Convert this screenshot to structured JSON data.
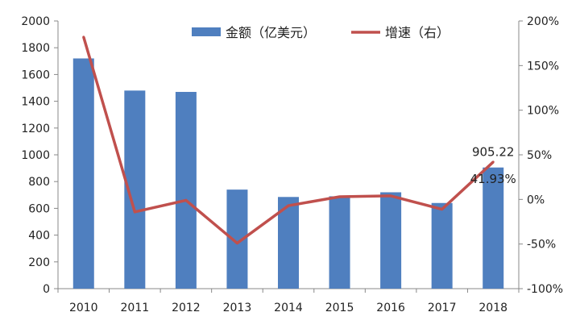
{
  "chart_data": {
    "type": "bar",
    "categories": [
      "2010",
      "2011",
      "2012",
      "2013",
      "2014",
      "2015",
      "2016",
      "2017",
      "2018"
    ],
    "series": [
      {
        "name": "金额（亿美元）",
        "type": "bar",
        "axis": "left",
        "color": "#4F7FBF",
        "values": [
          1720,
          1480,
          1470,
          740,
          685,
          690,
          720,
          640,
          905.22
        ]
      },
      {
        "name": "增速（右）",
        "type": "line",
        "axis": "right",
        "color": "#C0504D",
        "values": [
          182,
          -14,
          -1,
          -49,
          -7,
          3,
          4,
          -11,
          41.93
        ]
      }
    ],
    "y_left": {
      "min": 0,
      "max": 2000,
      "step": 200,
      "ticks": [
        "0",
        "200",
        "400",
        "600",
        "800",
        "1000",
        "1200",
        "1400",
        "1600",
        "1800",
        "2000"
      ]
    },
    "y_right": {
      "min": -100,
      "max": 200,
      "step": 50,
      "ticks": [
        "-100%",
        "-50%",
        "0%",
        "50%",
        "100%",
        "150%",
        "200%"
      ]
    },
    "legend_position": "top",
    "grid": false,
    "annotations": [
      {
        "text": "905.22",
        "series": 0,
        "index": 8
      },
      {
        "text": "41.93%",
        "series": 1,
        "index": 8
      }
    ]
  }
}
